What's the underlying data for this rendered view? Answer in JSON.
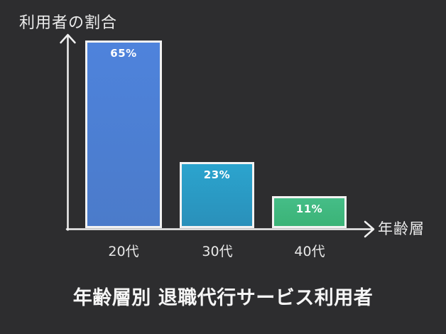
{
  "chart_data": {
    "type": "bar",
    "title": "年齢層別 退職代行サービス利用者",
    "ylabel": "利用者の割合",
    "xlabel": "年齢層",
    "categories": [
      "20代",
      "30代",
      "40代"
    ],
    "values": [
      65,
      23,
      11
    ],
    "value_labels": [
      "65%",
      "23%",
      "11%"
    ],
    "bar_colors": [
      {
        "top": "#4e83dc",
        "bottom": "#4b7bca"
      },
      {
        "top": "#2ba4ce",
        "bottom": "#2a90ba"
      },
      {
        "top": "#45bd87",
        "bottom": "#3bb377"
      }
    ],
    "ylim": [
      0,
      70
    ],
    "grid": false,
    "legend": false,
    "axis_color": "#f0f0f0",
    "bar_border_color": "#f2f2f2",
    "background_color": "#2d2d2f",
    "text_color": "#ececec"
  }
}
